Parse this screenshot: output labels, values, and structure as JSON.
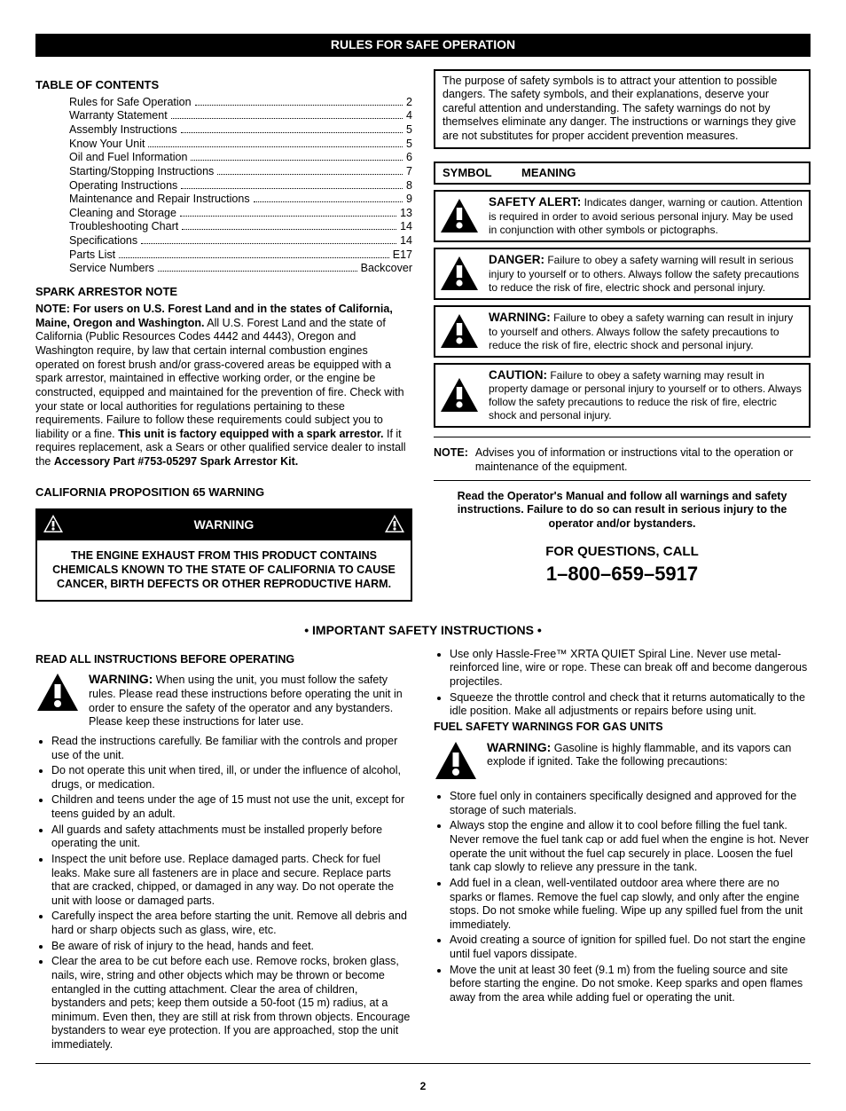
{
  "header_title": "RULES FOR SAFE OPERATION",
  "page_number": "2",
  "toc": {
    "heading": "TABLE OF CONTENTS",
    "rows": [
      {
        "label": "Rules for Safe Operation",
        "page": "2"
      },
      {
        "label": "Warranty Statement",
        "page": "4"
      },
      {
        "label": "Assembly Instructions",
        "page": "5"
      },
      {
        "label": "Know Your Unit",
        "page": "5"
      },
      {
        "label": "Oil and Fuel Information",
        "page": "6"
      },
      {
        "label": "Starting/Stopping Instructions",
        "page": "7"
      },
      {
        "label": "Operating Instructions",
        "page": "8"
      },
      {
        "label": "Maintenance and Repair Instructions",
        "page": "9"
      },
      {
        "label": "Cleaning and Storage",
        "page": "13"
      },
      {
        "label": "Troubleshooting Chart",
        "page": "14"
      },
      {
        "label": "Specifications",
        "page": "14"
      },
      {
        "label": "Parts List",
        "page": "E17"
      },
      {
        "label": "Service Numbers",
        "page": "Backcover"
      }
    ]
  },
  "spark_note": {
    "heading": "SPARK ARRESTOR NOTE",
    "lead_bold": "NOTE: For users on U.S. Forest Land and in the states of California, Maine, Oregon and Washington.",
    "body1": " All U.S. Forest Land and the state of California (Public Resources Codes 4442 and 4443), Oregon and Washington require, by law that certain internal combustion engines operated on forest brush and/or grass-covered areas be equipped with a spark arrestor, maintained in effective working order, or the engine be constructed, equipped and maintained for the prevention of fire. Check with your state or local authorities for regulations pertaining to these requirements. Failure to follow these requirements could subject you to liability or a fine. ",
    "unit_bold": "This unit is factory equipped with a spark arrestor.",
    "body2": " If it requires replacement, ask a Sears or other qualified service dealer to install the ",
    "part_bold": "Accessory Part #753-05297 Spark Arrestor Kit."
  },
  "prop65": {
    "heading": "CALIFORNIA PROPOSITION 65 WARNING",
    "title": "WARNING",
    "body": "THE ENGINE EXHAUST FROM THIS PRODUCT CONTAINS CHEMICALS KNOWN TO THE STATE OF CALIFORNIA TO CAUSE CANCER, BIRTH DEFECTS OR OTHER REPRODUCTIVE HARM."
  },
  "purpose_box": "The purpose of safety symbols is to attract your attention to possible dangers. The safety symbols, and their explanations, deserve your careful attention and understanding. The safety warnings do not by themselves eliminate any danger. The instructions or warnings they give are not substitutes for proper accident prevention measures.",
  "symbol_header": {
    "col1": "SYMBOL",
    "col2": "MEANING"
  },
  "symbols": [
    {
      "title": "SAFETY ALERT:",
      "text": " Indicates danger, warning or caution. Attention is required in order to avoid serious personal injury. May be used in conjunction with other symbols or pictographs."
    },
    {
      "title": "DANGER:",
      "text": " Failure to obey a safety warning will result in serious injury to yourself or to others. Always follow the safety precautions to reduce the risk of fire, electric shock and personal injury."
    },
    {
      "title": "WARNING:",
      "text": " Failure to obey a safety warning can result in injury to yourself and others. Always follow the safety precautions to reduce the risk of fire, electric shock and personal injury."
    },
    {
      "title": "CAUTION:",
      "text": " Failure to obey a safety warning may result in property damage or personal injury to yourself or to others. Always follow the safety precautions to reduce the risk of fire, electric shock and personal injury."
    }
  ],
  "note": {
    "label": "NOTE:",
    "text": "Advises you of information or instructions vital to the operation or maintenance of the equipment."
  },
  "read_manual": "Read the Operator's Manual and follow all warnings and safety instructions. Failure to do so can result in serious injury to the operator and/or bystanders.",
  "questions": "FOR QUESTIONS, CALL",
  "phone": "1–800–659–5917",
  "important_header": "•  IMPORTANT SAFETY INSTRUCTIONS  •",
  "read_all": "READ ALL INSTRUCTIONS BEFORE OPERATING",
  "warn_block1": {
    "title": "WARNING:",
    "text": " When using the unit, you must follow the safety rules. Please read these instructions before operating the unit in order to ensure the safety of the operator and any bystanders. Please keep these instructions for later use."
  },
  "left_bullets": [
    "Read the instructions carefully. Be familiar with the controls and proper use of the unit.",
    "Do not operate this unit when tired, ill, or under the influence of alcohol, drugs, or medication.",
    "Children and teens under the age of 15 must not use the unit, except for teens guided by an adult.",
    "All guards and safety attachments must be installed properly before operating the unit.",
    "Inspect the unit before use. Replace damaged parts. Check for fuel leaks. Make sure all fasteners are in place and secure. Replace parts that are cracked, chipped, or damaged in any way. Do not operate the unit with loose or damaged parts.",
    "Carefully inspect the area before starting the unit. Remove all debris and hard or sharp objects such as glass, wire, etc.",
    "Be aware of risk of injury to the head, hands and feet.",
    "Clear the area to be cut before each use. Remove rocks, broken glass, nails, wire, string and other objects which may be thrown or become entangled in the cutting attachment. Clear the area of children, bystanders and pets; keep them outside a 50-foot (15 m) radius, at a minimum. Even then, they are still at risk from thrown objects. Encourage bystanders to wear eye protection. If you are approached, stop the unit immediately."
  ],
  "right_bullets_top": [
    "Use only Hassle-Free™ XRTA QUIET Spiral Line. Never use metal-reinforced line, wire or rope. These can break off and become dangerous projectiles.",
    "Squeeze the throttle control and check that it returns automatically to the idle position. Make all adjustments or repairs before using unit."
  ],
  "fuel_heading": "FUEL SAFETY WARNINGS FOR GAS UNITS",
  "warn_block2": {
    "title": "WARNING:",
    "text": " Gasoline is highly flammable, and its vapors can explode if ignited. Take the following precautions:"
  },
  "right_bullets_fuel": [
    "Store fuel only in containers specifically designed and approved for the storage of such materials.",
    "Always stop the engine and allow it to cool before filling the fuel tank. Never remove the fuel tank cap or add fuel when the engine is hot. Never operate the unit without the fuel cap securely in place. Loosen the fuel tank cap slowly to relieve any pressure in the tank.",
    "Add fuel in a clean, well-ventilated outdoor area where there are no sparks or flames. Remove the fuel cap slowly, and only after the engine stops. Do not smoke while fueling. Wipe up any spilled fuel from the unit immediately.",
    "Avoid creating a source of ignition for spilled fuel. Do not start the engine until fuel vapors dissipate.",
    "Move the unit at least 30 feet (9.1 m) from the fueling source and site before starting the engine. Do not smoke. Keep sparks and open flames away from the area while adding fuel or operating the unit."
  ],
  "icons": {
    "triangle_fill": "#000000",
    "triangle_inv_fill": "#ffffff"
  }
}
